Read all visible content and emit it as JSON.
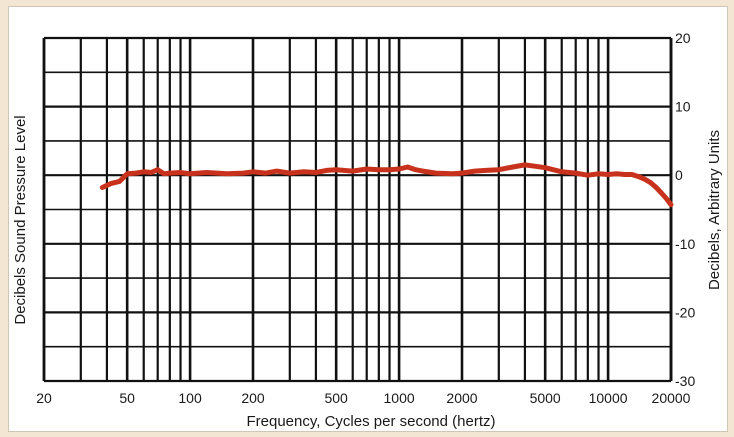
{
  "chart_data": {
    "type": "line",
    "x_scale": "log",
    "xlim": [
      20,
      20000
    ],
    "ylim": [
      -30,
      20
    ],
    "xlabel": "Frequency, Cycles per second (hertz)",
    "ylabel_left": "Decibels Sound Pressure Level",
    "ylabel_right": "Decibels, Arbitrary Units",
    "x_ticks": [
      {
        "value": 20,
        "label": "20"
      },
      {
        "value": 50,
        "label": "50"
      },
      {
        "value": 100,
        "label": "100"
      },
      {
        "value": 200,
        "label": "200"
      },
      {
        "value": 500,
        "label": "500"
      },
      {
        "value": 1000,
        "label": "1000"
      },
      {
        "value": 2000,
        "label": "2000"
      },
      {
        "value": 5000,
        "label": "5000"
      },
      {
        "value": 10000,
        "label": "10000"
      },
      {
        "value": 20000,
        "label": "20000"
      }
    ],
    "y_ticks": [
      {
        "value": 20,
        "label": "20"
      },
      {
        "value": 10,
        "label": "10"
      },
      {
        "value": 0,
        "label": "0"
      },
      {
        "value": -10,
        "label": "-10"
      },
      {
        "value": -20,
        "label": "-20"
      },
      {
        "value": -30,
        "label": "-30"
      }
    ],
    "grid": true,
    "colors": {
      "line": "#c8321c",
      "grid": "#111111"
    },
    "series": [
      {
        "x": [
          38,
          42,
          46,
          50,
          55,
          60,
          65,
          70,
          75,
          80,
          90,
          100,
          120,
          150,
          180,
          200,
          230,
          260,
          300,
          350,
          400,
          450,
          500,
          600,
          700,
          800,
          900,
          1000,
          1100,
          1200,
          1300,
          1500,
          1800,
          2000,
          2300,
          2600,
          3000,
          3500,
          4000,
          4500,
          5000,
          6000,
          7000,
          8000,
          9000,
          10000,
          11000,
          12000,
          13000,
          14000,
          15000,
          16000,
          17000,
          18000,
          19000,
          20000
        ],
        "y": [
          -1.8,
          -1.2,
          -0.9,
          0.2,
          0.3,
          0.5,
          0.4,
          0.8,
          0.2,
          0.3,
          0.4,
          0.2,
          0.4,
          0.2,
          0.3,
          0.5,
          0.3,
          0.6,
          0.3,
          0.5,
          0.4,
          0.7,
          0.8,
          0.6,
          0.9,
          0.8,
          0.8,
          0.9,
          1.2,
          0.8,
          0.6,
          0.3,
          0.2,
          0.3,
          0.6,
          0.7,
          0.8,
          1.2,
          1.5,
          1.3,
          1.1,
          0.5,
          0.3,
          0,
          0.2,
          0.1,
          0.2,
          0.1,
          0.1,
          -0.2,
          -0.6,
          -1.1,
          -1.8,
          -2.6,
          -3.4,
          -4.3
        ]
      }
    ]
  }
}
